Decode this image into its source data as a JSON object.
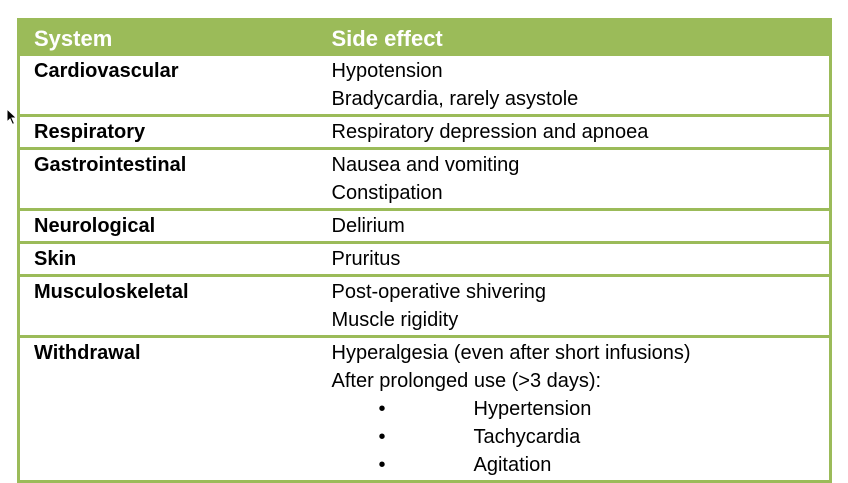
{
  "header": {
    "system": "System",
    "side_effect": "Side effect"
  },
  "rows": [
    {
      "system": "Cardiovascular",
      "effects": [
        "Hypotension",
        "Bradycardia, rarely asystole"
      ]
    },
    {
      "system": "Respiratory",
      "effects": [
        "Respiratory depression and apnoea"
      ]
    },
    {
      "system": "Gastrointestinal",
      "effects": [
        "Nausea and vomiting",
        "Constipation"
      ]
    },
    {
      "system": "Neurological",
      "effects": [
        "Delirium"
      ]
    },
    {
      "system": "Skin",
      "effects": [
        "Pruritus"
      ]
    },
    {
      "system": "Musculoskeletal",
      "effects": [
        "Post-operative shivering",
        "Muscle rigidity"
      ]
    },
    {
      "system": "Withdrawal",
      "effects": [
        "Hyperalgesia (even after short infusions)",
        "After prolonged use (>3 days):"
      ],
      "bullets": [
        "Hypertension",
        "Tachycardia",
        "Agitation"
      ],
      "bullet_glyph": "•"
    }
  ],
  "colors": {
    "accent": "#9bbb59",
    "header_text": "#ffffff"
  },
  "icons": {
    "cursor": "mouse-pointer-icon"
  }
}
